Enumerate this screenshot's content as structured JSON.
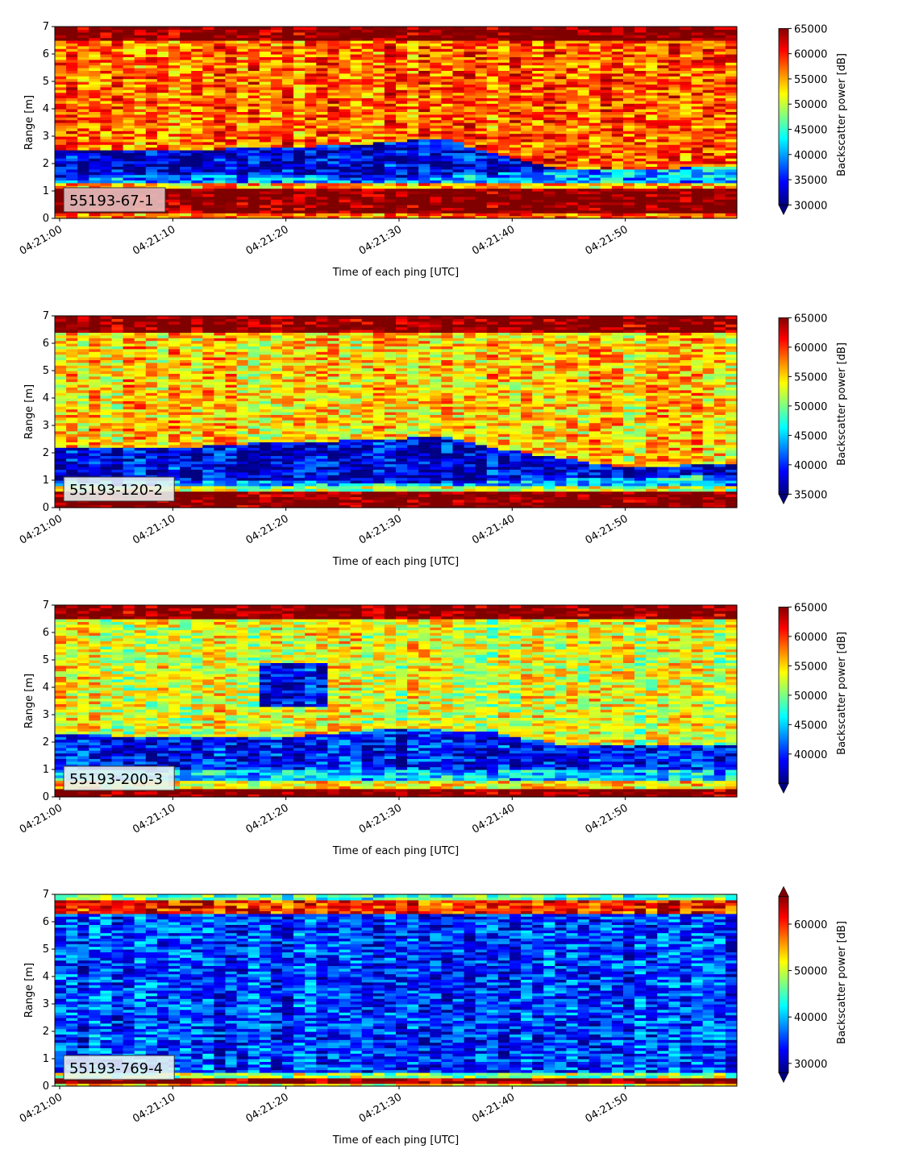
{
  "chart_data": [
    {
      "type": "heatmap",
      "label_box": "55193-67-1",
      "xlabel": "Time of each ping [UTC]",
      "ylabel": "Range [m]",
      "x_ticks": [
        "04:21:00",
        "04:21:10",
        "04:21:20",
        "04:21:30",
        "04:21:40",
        "04:21:50"
      ],
      "xlim_seconds": [
        0,
        60
      ],
      "ylim": [
        0,
        7
      ],
      "y_ticks": [
        0,
        1,
        2,
        3,
        4,
        5,
        6,
        7
      ],
      "colorbar": {
        "label": "Backscatter power [dB]",
        "vmin": 30000,
        "vmax": 65000,
        "ticks": [
          30000,
          35000,
          40000,
          45000,
          50000,
          55000,
          60000,
          65000
        ],
        "extend": "min",
        "colormap": "jet"
      },
      "bands": [
        {
          "from": 0.0,
          "to": 0.25,
          "value": 57000
        },
        {
          "from": 0.25,
          "to": 1.1,
          "value": 66000
        },
        {
          "from": 1.1,
          "to": 1.3,
          "value": 54000
        },
        {
          "from": 1.3,
          "to": "lower_edge",
          "value": 40000
        },
        {
          "from": "lower_edge",
          "to": "upper_edge",
          "value": 33000
        },
        {
          "from": "upper_edge",
          "to": 6.5,
          "value": 57000
        },
        {
          "from": 6.5,
          "to": 7.0,
          "value": 65500
        }
      ],
      "dark_layer": {
        "t": [
          0,
          10,
          20,
          30,
          34,
          40,
          45,
          50,
          60
        ],
        "lower_edge": [
          1.5,
          1.6,
          1.6,
          1.5,
          1.5,
          1.7,
          1.8,
          1.8,
          1.9
        ],
        "upper_edge": [
          2.5,
          2.5,
          2.6,
          2.8,
          2.95,
          2.2,
          1.8,
          1.8,
          1.9
        ]
      }
    },
    {
      "type": "heatmap",
      "label_box": "55193-120-2",
      "xlabel": "Time of each ping [UTC]",
      "ylabel": "Range [m]",
      "x_ticks": [
        "04:21:00",
        "04:21:10",
        "04:21:20",
        "04:21:30",
        "04:21:40",
        "04:21:50"
      ],
      "xlim_seconds": [
        0,
        60
      ],
      "ylim": [
        0,
        7
      ],
      "y_ticks": [
        0,
        1,
        2,
        3,
        4,
        5,
        6,
        7
      ],
      "colorbar": {
        "label": "Backscatter power [dB]",
        "vmin": 35000,
        "vmax": 65000,
        "ticks": [
          35000,
          40000,
          45000,
          50000,
          55000,
          60000,
          65000
        ],
        "extend": "min",
        "colormap": "jet"
      },
      "bands": [
        {
          "from": 0.0,
          "to": 0.6,
          "value": 66000
        },
        {
          "from": 0.6,
          "to": 0.8,
          "value": 52000
        },
        {
          "from": 0.8,
          "to": "lower_edge",
          "value": 44000
        },
        {
          "from": "lower_edge",
          "to": "upper_edge",
          "value": 38000
        },
        {
          "from": "upper_edge",
          "to": 6.4,
          "value": 55000
        },
        {
          "from": 6.4,
          "to": 7.0,
          "value": 65500
        }
      ],
      "dark_layer": {
        "t": [
          0,
          10,
          20,
          30,
          34,
          40,
          50,
          60
        ],
        "lower_edge": [
          1.0,
          1.0,
          1.0,
          0.9,
          0.9,
          1.0,
          1.1,
          1.2
        ],
        "upper_edge": [
          2.2,
          2.2,
          2.4,
          2.5,
          2.65,
          2.1,
          1.5,
          1.6
        ]
      }
    },
    {
      "type": "heatmap",
      "label_box": "55193-200-3",
      "xlabel": "Time of each ping [UTC]",
      "ylabel": "Range [m]",
      "x_ticks": [
        "04:21:00",
        "04:21:10",
        "04:21:20",
        "04:21:30",
        "04:21:40",
        "04:21:50"
      ],
      "xlim_seconds": [
        0,
        60
      ],
      "ylim": [
        0,
        7
      ],
      "y_ticks": [
        0,
        1,
        2,
        3,
        4,
        5,
        6,
        7
      ],
      "colorbar": {
        "label": "Backscatter power [dB]",
        "vmin": 35000,
        "vmax": 65000,
        "ticks": [
          40000,
          45000,
          50000,
          55000,
          60000,
          65000
        ],
        "extend": "min",
        "colormap": "jet"
      },
      "bands": [
        {
          "from": 0.0,
          "to": 0.35,
          "value": 66000
        },
        {
          "from": 0.35,
          "to": 0.6,
          "value": 54000
        },
        {
          "from": 0.6,
          "to": "lower_edge",
          "value": 45000
        },
        {
          "from": "lower_edge",
          "to": "upper_edge",
          "value": 39000
        },
        {
          "from": "upper_edge",
          "to": 6.5,
          "value": 53000
        },
        {
          "from": 6.5,
          "to": 7.0,
          "value": 65500
        }
      ],
      "dark_layer": {
        "t": [
          0,
          10,
          20,
          30,
          38,
          45,
          50,
          60
        ],
        "lower_edge": [
          1.0,
          1.0,
          1.0,
          1.0,
          1.0,
          1.0,
          1.0,
          1.0
        ],
        "upper_edge": [
          2.3,
          2.2,
          2.2,
          2.5,
          2.4,
          1.9,
          1.9,
          1.9
        ]
      },
      "low_patch": {
        "t_from": 18,
        "t_to": 24,
        "from": 3.3,
        "to": 4.9,
        "value": 38000
      }
    },
    {
      "type": "heatmap",
      "label_box": "55193-769-4",
      "xlabel": "Time of each ping [UTC]",
      "ylabel": "Range [m]",
      "x_ticks": [
        "04:21:00",
        "04:21:10",
        "04:21:20",
        "04:21:30",
        "04:21:40",
        "04:21:50"
      ],
      "xlim_seconds": [
        0,
        60
      ],
      "ylim": [
        0,
        7
      ],
      "y_ticks": [
        0,
        1,
        2,
        3,
        4,
        5,
        6,
        7
      ],
      "colorbar": {
        "label": "Backscatter power [dB]",
        "vmin": 28000,
        "vmax": 66000,
        "ticks": [
          30000,
          40000,
          50000,
          60000
        ],
        "extend": "both",
        "colormap": "jet"
      },
      "bands": [
        {
          "from": 0.0,
          "to": 0.1,
          "value": 52000
        },
        {
          "from": 0.1,
          "to": 0.3,
          "value": 66000
        },
        {
          "from": 0.3,
          "to": 0.45,
          "value": 48000
        },
        {
          "from": 0.45,
          "to": 6.3,
          "value": 35000
        },
        {
          "from": 6.3,
          "to": 6.8,
          "value": 60000
        },
        {
          "from": 6.8,
          "to": 7.0,
          "value": 45000
        }
      ]
    }
  ]
}
